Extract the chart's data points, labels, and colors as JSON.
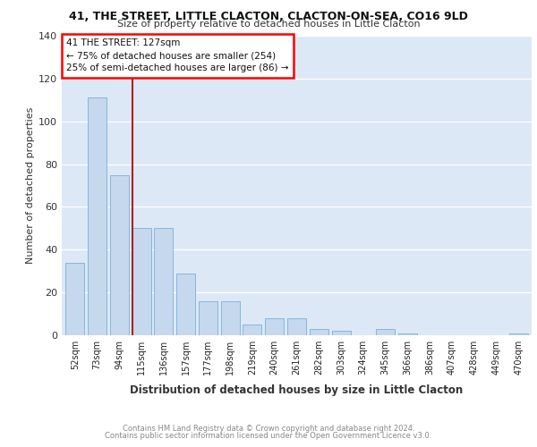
{
  "title": "41, THE STREET, LITTLE CLACTON, CLACTON-ON-SEA, CO16 9LD",
  "subtitle": "Size of property relative to detached houses in Little Clacton",
  "xlabel": "Distribution of detached houses by size in Little Clacton",
  "ylabel": "Number of detached properties",
  "categories": [
    "52sqm",
    "73sqm",
    "94sqm",
    "115sqm",
    "136sqm",
    "157sqm",
    "177sqm",
    "198sqm",
    "219sqm",
    "240sqm",
    "261sqm",
    "282sqm",
    "303sqm",
    "324sqm",
    "345sqm",
    "366sqm",
    "386sqm",
    "407sqm",
    "428sqm",
    "449sqm",
    "470sqm"
  ],
  "values": [
    34,
    111,
    75,
    50,
    50,
    29,
    16,
    16,
    5,
    8,
    8,
    3,
    2,
    0,
    3,
    1,
    0,
    0,
    0,
    0,
    1
  ],
  "bar_color": "#c5d8ed",
  "bar_edge_color": "#7ab0d8",
  "annotation_line1": "41 THE STREET: 127sqm",
  "annotation_line2": "← 75% of detached houses are smaller (254)",
  "annotation_line3": "25% of semi-detached houses are larger (86) →",
  "vline_color": "#aa2222",
  "background_color": "#dce8f5",
  "grid_color": "#ffffff",
  "footer_line1": "Contains HM Land Registry data © Crown copyright and database right 2024.",
  "footer_line2": "Contains public sector information licensed under the Open Government Licence v3.0.",
  "ylim": [
    0,
    140
  ],
  "yticks": [
    0,
    20,
    40,
    60,
    80,
    100,
    120,
    140
  ]
}
